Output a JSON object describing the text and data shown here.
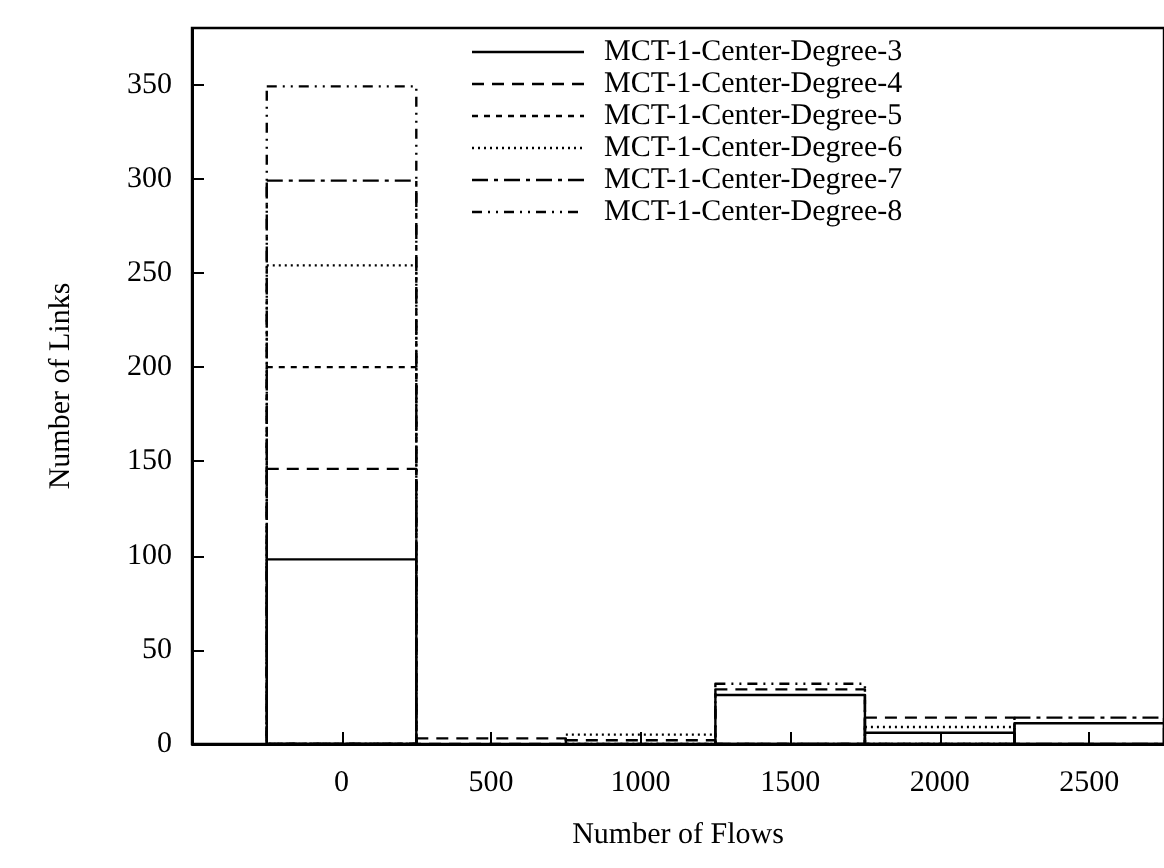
{
  "chart_data": {
    "type": "histogram",
    "xlabel": "Number of Flows",
    "ylabel": "Number of Links",
    "bins": [
      -250,
      250,
      750,
      1250,
      1750,
      2250,
      2750
    ],
    "series": [
      {
        "name": "MCT-1-Center-Degree-3",
        "color": "#000000",
        "line_style": "solid",
        "values": [
          98,
          null,
          null,
          26,
          6,
          11
        ]
      },
      {
        "name": "MCT-1-Center-Degree-4",
        "color": "#000000",
        "line_style": "dashed",
        "values": [
          146,
          3,
          2,
          29,
          14,
          null
        ]
      },
      {
        "name": "MCT-1-Center-Degree-5",
        "color": "#000000",
        "line_style": "dotted",
        "values": [
          200,
          null,
          null,
          null,
          null,
          null
        ]
      },
      {
        "name": "MCT-1-Center-Degree-6",
        "color": "#000000",
        "line_style": "dotted",
        "values": [
          254,
          null,
          5,
          null,
          9,
          null
        ]
      },
      {
        "name": "MCT-1-Center-Degree-7",
        "color": "#000000",
        "line_style": "dashed",
        "values": [
          299,
          null,
          null,
          null,
          null,
          14
        ]
      },
      {
        "name": "MCT-1-Center-Degree-8",
        "color": "#000000",
        "line_style": "dashed",
        "values": [
          349,
          null,
          null,
          32,
          null,
          null
        ]
      }
    ],
    "xlim": [
      -500,
      2750
    ],
    "xticks": [
      0,
      500,
      1000,
      1500,
      2000,
      2500
    ],
    "ylim": [
      0,
      380
    ],
    "yticks": [
      0,
      50,
      100,
      150,
      200,
      250,
      300,
      350
    ],
    "legend": "top right",
    "grid": false
  }
}
